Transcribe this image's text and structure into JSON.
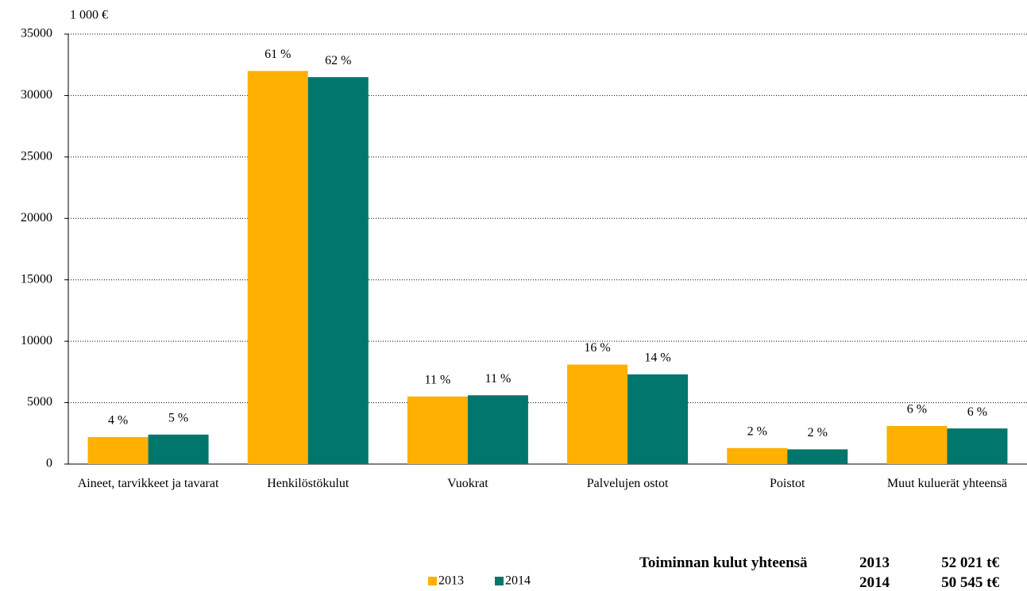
{
  "chart_data": {
    "type": "bar",
    "y_label": "1 000 €",
    "categories": [
      "Aineet, tarvikkeet ja tavarat",
      "Henkilöstökulut",
      "Vuokrat",
      "Palvelujen ostot",
      "Poistot",
      "Muut kuluerät yhteensä"
    ],
    "series": [
      {
        "name": "2013",
        "color": "#ffb000",
        "values": [
          2200,
          32000,
          5500,
          8100,
          1300,
          3100
        ],
        "share_labels": [
          "4 %",
          "61 %",
          "11 %",
          "16 %",
          "2 %",
          "6 %"
        ]
      },
      {
        "name": "2014",
        "color": "#00766c",
        "values": [
          2400,
          31500,
          5600,
          7300,
          1200,
          2900
        ],
        "share_labels": [
          "5 %",
          "62 %",
          "11 %",
          "14 %",
          "2 %",
          "6 %"
        ]
      }
    ],
    "ylim": [
      0,
      35000
    ],
    "yticks": [
      0,
      5000,
      10000,
      15000,
      20000,
      25000,
      30000,
      35000
    ],
    "grid": true,
    "legend": "bottom",
    "totals_title": "Toiminnan kulut yhteensä",
    "totals": [
      {
        "year": "2013",
        "amount": "52 021 t€"
      },
      {
        "year": "2014",
        "amount": "50 545 t€"
      }
    ]
  }
}
